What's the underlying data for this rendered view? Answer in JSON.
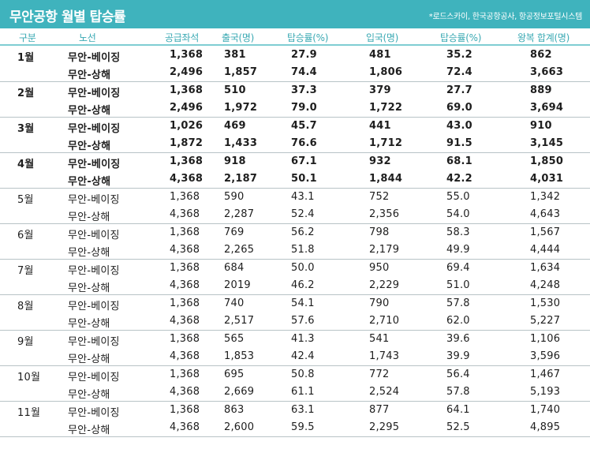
{
  "title": "무안공항 월별 탑승률",
  "source": "*로드스카이, 한국공항공사, 항공정보포털시스템",
  "headers": [
    "구분",
    "노선",
    "공급좌석",
    "출국(명)",
    "탑승률(%)",
    "입국(명)",
    "탑승률(%)",
    "왕복 합계(명)"
  ],
  "colors": {
    "title_bar": "#3fb3bd",
    "header_text": "#3aa9b3",
    "header_rule": "#7fcdd2",
    "row_rule": "#b8c3c6"
  },
  "months": [
    {
      "month": "1월",
      "rows": [
        {
          "route": "무안-베이징",
          "seats": "1,368",
          "departures": "381",
          "dep_rate": "27.9",
          "arrivals": "481",
          "arr_rate": "35.2",
          "total": "862"
        },
        {
          "route": "무안-상해",
          "seats": "2,496",
          "departures": "1,857",
          "dep_rate": "74.4",
          "arrivals": "1,806",
          "arr_rate": "72.4",
          "total": "3,663"
        }
      ]
    },
    {
      "month": "2월",
      "rows": [
        {
          "route": "무안-베이징",
          "seats": "1,368",
          "departures": "510",
          "dep_rate": "37.3",
          "arrivals": "379",
          "arr_rate": "27.7",
          "total": "889"
        },
        {
          "route": "무안-상해",
          "seats": "2,496",
          "departures": "1,972",
          "dep_rate": "79.0",
          "arrivals": "1,722",
          "arr_rate": "69.0",
          "total": "3,694"
        }
      ]
    },
    {
      "month": "3월",
      "rows": [
        {
          "route": "무안-베이징",
          "seats": "1,026",
          "departures": "469",
          "dep_rate": "45.7",
          "arrivals": "441",
          "arr_rate": "43.0",
          "total": "910"
        },
        {
          "route": "무안-상해",
          "seats": "1,872",
          "departures": "1,433",
          "dep_rate": "76.6",
          "arrivals": "1,712",
          "arr_rate": "91.5",
          "total": "3,145"
        }
      ]
    },
    {
      "month": "4월",
      "rows": [
        {
          "route": "무안-베이징",
          "seats": "1,368",
          "departures": "918",
          "dep_rate": "67.1",
          "arrivals": "932",
          "arr_rate": "68.1",
          "total": "1,850"
        },
        {
          "route": "무안-상해",
          "seats": "4,368",
          "departures": "2,187",
          "dep_rate": "50.1",
          "arrivals": "1,844",
          "arr_rate": "42.2",
          "total": "4,031"
        }
      ]
    },
    {
      "month": "5월",
      "rows": [
        {
          "route": "무안-베이징",
          "seats": "1,368",
          "departures": "590",
          "dep_rate": "43.1",
          "arrivals": "752",
          "arr_rate": "55.0",
          "total": "1,342"
        },
        {
          "route": "무안-상해",
          "seats": "4,368",
          "departures": "2,287",
          "dep_rate": "52.4",
          "arrivals": "2,356",
          "arr_rate": "54.0",
          "total": "4,643"
        }
      ]
    },
    {
      "month": "6월",
      "rows": [
        {
          "route": "무안-베이징",
          "seats": "1,368",
          "departures": "769",
          "dep_rate": "56.2",
          "arrivals": "798",
          "arr_rate": "58.3",
          "total": "1,567"
        },
        {
          "route": "무안-상해",
          "seats": "4,368",
          "departures": "2,265",
          "dep_rate": "51.8",
          "arrivals": "2,179",
          "arr_rate": "49.9",
          "total": "4,444"
        }
      ]
    },
    {
      "month": "7월",
      "rows": [
        {
          "route": "무안-베이징",
          "seats": "1,368",
          "departures": "684",
          "dep_rate": "50.0",
          "arrivals": "950",
          "arr_rate": "69.4",
          "total": "1,634"
        },
        {
          "route": "무안-상해",
          "seats": "4,368",
          "departures": "2019",
          "dep_rate": "46.2",
          "arrivals": "2,229",
          "arr_rate": "51.0",
          "total": "4,248"
        }
      ]
    },
    {
      "month": "8월",
      "rows": [
        {
          "route": "무안-베이징",
          "seats": "1,368",
          "departures": "740",
          "dep_rate": "54.1",
          "arrivals": "790",
          "arr_rate": "57.8",
          "total": "1,530"
        },
        {
          "route": "무안-상해",
          "seats": "4,368",
          "departures": "2,517",
          "dep_rate": "57.6",
          "arrivals": "2,710",
          "arr_rate": "62.0",
          "total": "5,227"
        }
      ]
    },
    {
      "month": "9월",
      "rows": [
        {
          "route": "무안-베이징",
          "seats": "1,368",
          "departures": "565",
          "dep_rate": "41.3",
          "arrivals": "541",
          "arr_rate": "39.6",
          "total": "1,106"
        },
        {
          "route": "무안-상해",
          "seats": "4,368",
          "departures": "1,853",
          "dep_rate": "42.4",
          "arrivals": "1,743",
          "arr_rate": "39.9",
          "total": "3,596"
        }
      ]
    },
    {
      "month": "10월",
      "rows": [
        {
          "route": "무안-베이징",
          "seats": "1,368",
          "departures": "695",
          "dep_rate": "50.8",
          "arrivals": "772",
          "arr_rate": "56.4",
          "total": "1,467"
        },
        {
          "route": "무안-상해",
          "seats": "4,368",
          "departures": "2,669",
          "dep_rate": "61.1",
          "arrivals": "2,524",
          "arr_rate": "57.8",
          "total": "5,193"
        }
      ]
    },
    {
      "month": "11월",
      "rows": [
        {
          "route": "무안-베이징",
          "seats": "1,368",
          "departures": "863",
          "dep_rate": "63.1",
          "arrivals": "877",
          "arr_rate": "64.1",
          "total": "1,740"
        },
        {
          "route": "무안-상해",
          "seats": "4,368",
          "departures": "2,600",
          "dep_rate": "59.5",
          "arrivals": "2,295",
          "arr_rate": "52.5",
          "total": "4,895"
        }
      ]
    }
  ]
}
